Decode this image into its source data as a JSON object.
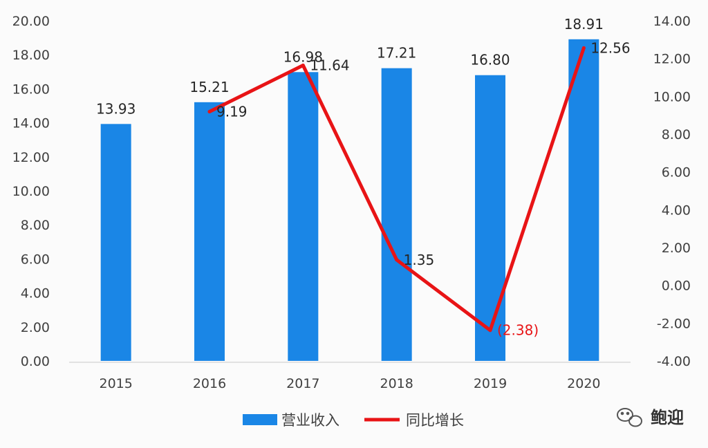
{
  "chart_data": {
    "type": "bar",
    "categories": [
      "2015",
      "2016",
      "2017",
      "2018",
      "2019",
      "2020"
    ],
    "series": [
      {
        "name": "营业收入",
        "type": "bar",
        "axis": "left",
        "color": "#1a86e6",
        "values": [
          13.93,
          15.21,
          16.98,
          17.21,
          16.8,
          18.91
        ],
        "labels": [
          "13.93",
          "15.21",
          "16.98",
          "17.21",
          "16.80",
          "18.91"
        ]
      },
      {
        "name": "同比增长",
        "type": "line",
        "axis": "right",
        "color": "#e81416",
        "values": [
          null,
          9.19,
          11.64,
          1.35,
          -2.38,
          12.56
        ],
        "labels": [
          "",
          "9.19",
          "11.64",
          "1.35",
          "(2.38)",
          "12.56"
        ]
      }
    ],
    "y_left": {
      "min": 0,
      "max": 20,
      "ticks": [
        "0.00",
        "2.00",
        "4.00",
        "6.00",
        "8.00",
        "10.00",
        "12.00",
        "14.00",
        "16.00",
        "18.00",
        "20.00"
      ]
    },
    "y_right": {
      "min": -4,
      "max": 14,
      "ticks": [
        "-4.00",
        "-2.00",
        "0.00",
        "2.00",
        "4.00",
        "6.00",
        "8.00",
        "10.00",
        "12.00",
        "14.00"
      ]
    },
    "negative_label_color": "#e81416",
    "grid": false,
    "legend_position": "bottom"
  },
  "watermark": {
    "text": "鲍迎"
  }
}
